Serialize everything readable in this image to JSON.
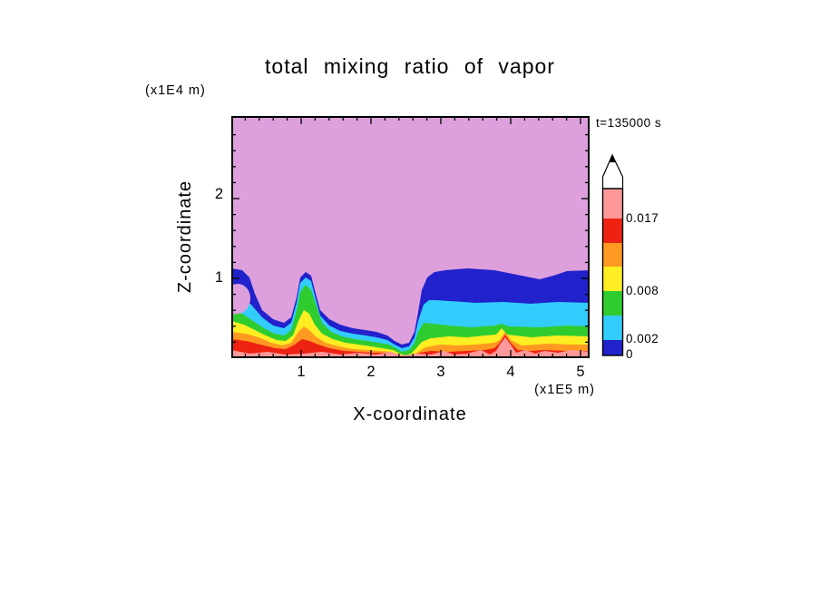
{
  "title": "total mixing ratio of vapor",
  "labels": {
    "time": "t=135000 s",
    "y_axis_units": "(x1E4 m)",
    "x_axis_units": "(x1E5 m)"
  },
  "axes": {
    "x_label": "X-coordinate",
    "y_label": "Z-coordinate",
    "x_ticks": [
      "1",
      "2",
      "3",
      "4",
      "5"
    ],
    "y_ticks": [
      "2",
      "1"
    ]
  },
  "colorbar": {
    "orientation": "vertical",
    "over_range_arrow": true,
    "labels": [
      "0.017",
      "0.008",
      "0.002",
      "0"
    ],
    "segment_colors_bottom_to_top": [
      "darkblue",
      "cyan",
      "green",
      "yellow",
      "orange",
      "red",
      "salmon"
    ]
  },
  "chart_data": {
    "type": "heatmap",
    "title": "total mixing ratio of vapor",
    "xlabel": "X-coordinate",
    "ylabel": "Z-coordinate",
    "x_units_note": "(x1E5 m)",
    "y_units_note": "(x1E4 m)",
    "time_annotation": "t=135000 s",
    "x_range": [
      0,
      5.2
    ],
    "y_range": [
      0,
      2.9
    ],
    "contour_levels": [
      0,
      0.002,
      0.005,
      0.008,
      0.011,
      0.014,
      0.017
    ],
    "labeled_levels": [
      0.017,
      0.008,
      0.002,
      0
    ],
    "legend_position": "right",
    "grid": false,
    "palette": {
      "plum": "#DDA0DD",
      "darkblue": "#2222CC",
      "cyan": "#33CCFF",
      "green": "#2FCC2F",
      "yellow": "#FFEE22",
      "orange": "#FF9922",
      "red": "#EE2211",
      "salmon": "#FF9999",
      "ink": "#000000"
    },
    "x": [
      0.2,
      0.6,
      1.0,
      1.4,
      1.8,
      2.2,
      2.6,
      3.0,
      3.4,
      3.8,
      4.2,
      4.6,
      5.0
    ],
    "z": [
      2.75,
      2.25,
      1.75,
      1.4,
      1.1,
      0.9,
      0.7,
      0.5,
      0.3,
      0.1
    ],
    "values": [
      [
        0.0,
        0.0,
        0.0,
        0.0,
        0.0,
        0.0,
        0.0,
        0.0,
        0.0,
        0.0,
        0.0,
        0.0,
        0.0
      ],
      [
        0.0,
        0.0,
        0.0,
        0.0,
        0.0,
        0.0,
        0.0,
        0.0,
        0.0,
        0.0,
        0.0,
        0.0,
        0.0
      ],
      [
        0.0,
        0.0,
        0.0,
        0.0,
        0.0,
        0.0,
        0.0,
        0.0,
        0.0,
        0.0,
        0.0,
        0.0,
        0.0
      ],
      [
        0.0,
        0.0,
        0.0,
        0.0,
        0.0,
        0.0,
        0.0,
        0.0,
        0.0,
        0.0,
        0.0,
        0.0,
        0.0
      ],
      [
        0.0,
        0.0,
        0.0,
        0.0,
        0.0,
        0.0,
        0.001,
        0.001,
        0.001,
        0.001,
        0.001,
        0.001,
        0.001
      ],
      [
        0.001,
        0.0,
        0.003,
        0.0,
        0.0,
        0.001,
        0.002,
        0.003,
        0.003,
        0.003,
        0.003,
        0.003,
        0.003
      ],
      [
        0.003,
        0.001,
        0.005,
        0.001,
        0.0,
        0.003,
        0.005,
        0.005,
        0.005,
        0.005,
        0.005,
        0.005,
        0.005
      ],
      [
        0.007,
        0.004,
        0.007,
        0.004,
        0.001,
        0.007,
        0.009,
        0.009,
        0.009,
        0.009,
        0.009,
        0.009,
        0.009
      ],
      [
        0.012,
        0.01,
        0.012,
        0.01,
        0.006,
        0.012,
        0.013,
        0.013,
        0.013,
        0.012,
        0.013,
        0.013,
        0.012
      ],
      [
        0.016,
        0.015,
        0.016,
        0.015,
        0.013,
        0.016,
        0.018,
        0.016,
        0.017,
        0.016,
        0.018,
        0.016,
        0.016
      ]
    ]
  }
}
